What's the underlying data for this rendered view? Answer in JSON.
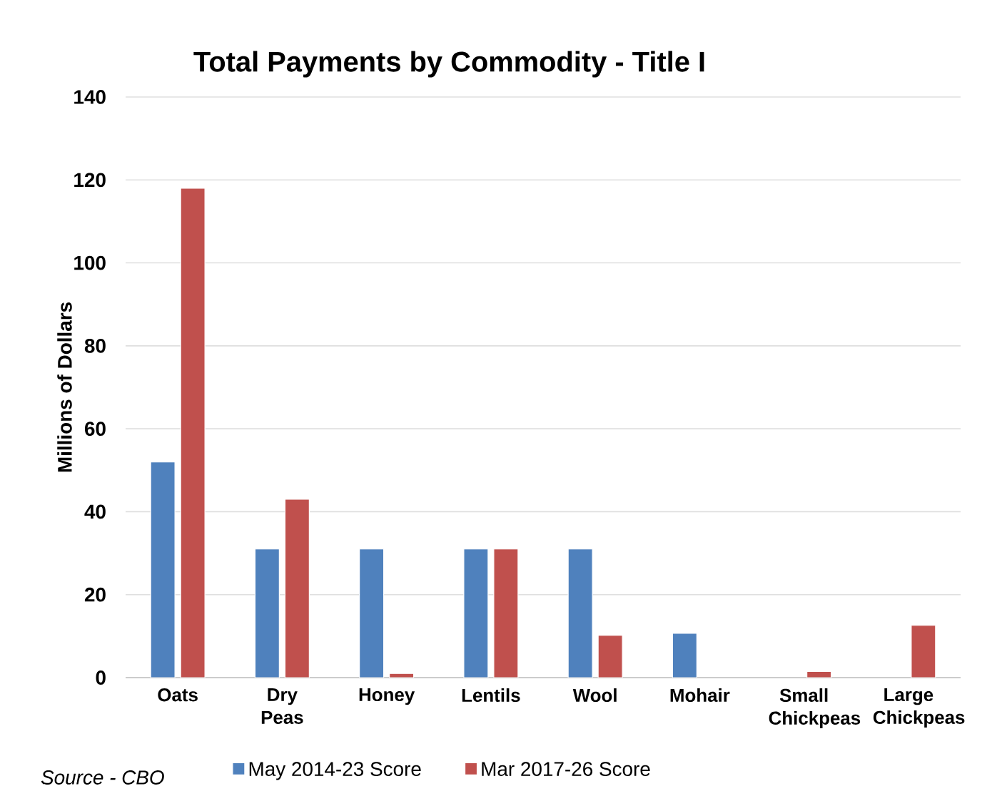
{
  "chart_data": {
    "type": "bar",
    "title": "Total Payments by Commodity - Title I",
    "ylabel": "Millions of Dollars",
    "categories": [
      "Oats",
      "Dry Peas",
      "Honey",
      "Lentils",
      "Wool",
      "Mohair",
      "Small Chickpeas",
      "Large Chickpeas"
    ],
    "series": [
      {
        "name": "May 2014-23  Score",
        "color": "#4f81bd",
        "values": [
          52,
          31,
          31,
          31,
          31,
          10.7,
          null,
          null
        ]
      },
      {
        "name": "Mar 2017-26 Score",
        "color": "#c0504d",
        "values": [
          118,
          43,
          1,
          31,
          10.2,
          null,
          1.5,
          12.6
        ]
      }
    ],
    "ylim": [
      0,
      140
    ],
    "yticks": [
      0,
      20,
      40,
      60,
      80,
      100,
      120,
      140
    ],
    "grid": "y",
    "legend": "bottom",
    "annotations": [
      "Source - CBO"
    ]
  }
}
